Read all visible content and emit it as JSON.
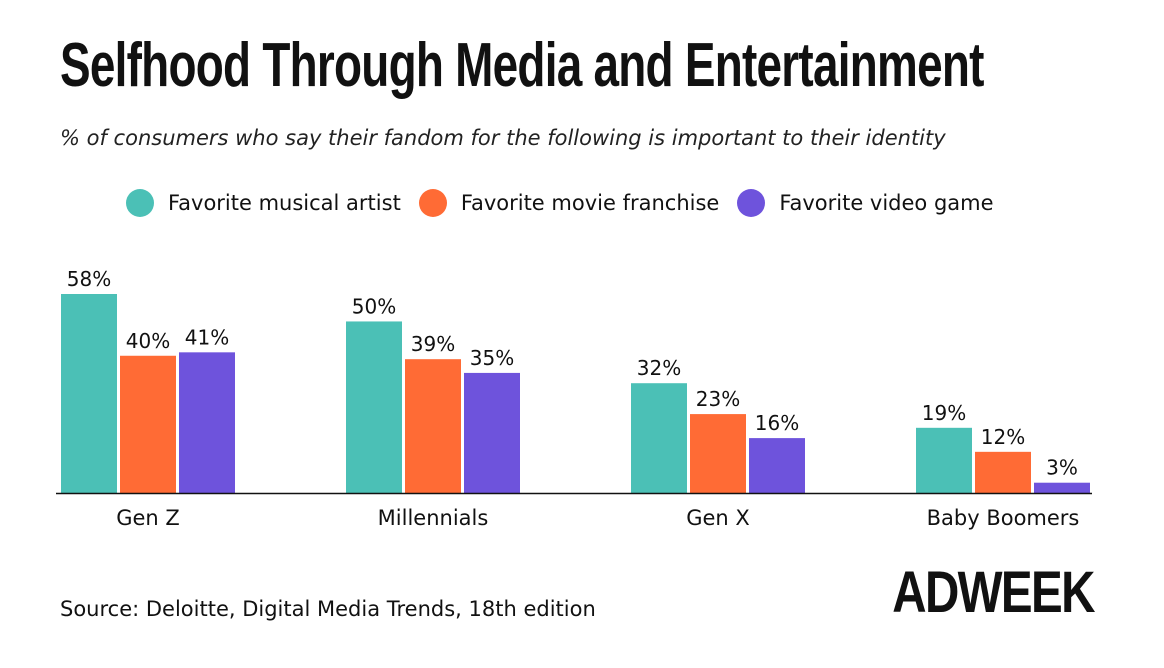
{
  "chart_data": {
    "type": "bar",
    "title": "Selfhood Through Media and Entertainment",
    "subtitle": "% of consumers who say their fandom for the following is important to their identity",
    "categories": [
      "Gen Z",
      "Millennials",
      "Gen X",
      "Baby Boomers"
    ],
    "series": [
      {
        "name": "Favorite musical artist",
        "color": "#4bc0b6",
        "values": [
          58,
          50,
          32,
          19
        ]
      },
      {
        "name": "Favorite movie franchise",
        "color": "#ff6b35",
        "values": [
          40,
          39,
          23,
          12
        ]
      },
      {
        "name": "Favorite video game",
        "color": "#6e53dc",
        "values": [
          41,
          35,
          16,
          3
        ]
      }
    ],
    "value_suffix": "%",
    "ylim": [
      0,
      58
    ],
    "grid": false,
    "legend_position": "top"
  },
  "source": "Source: Deloitte, Digital Media Trends, 18th edition",
  "brand": "ADWEEK"
}
